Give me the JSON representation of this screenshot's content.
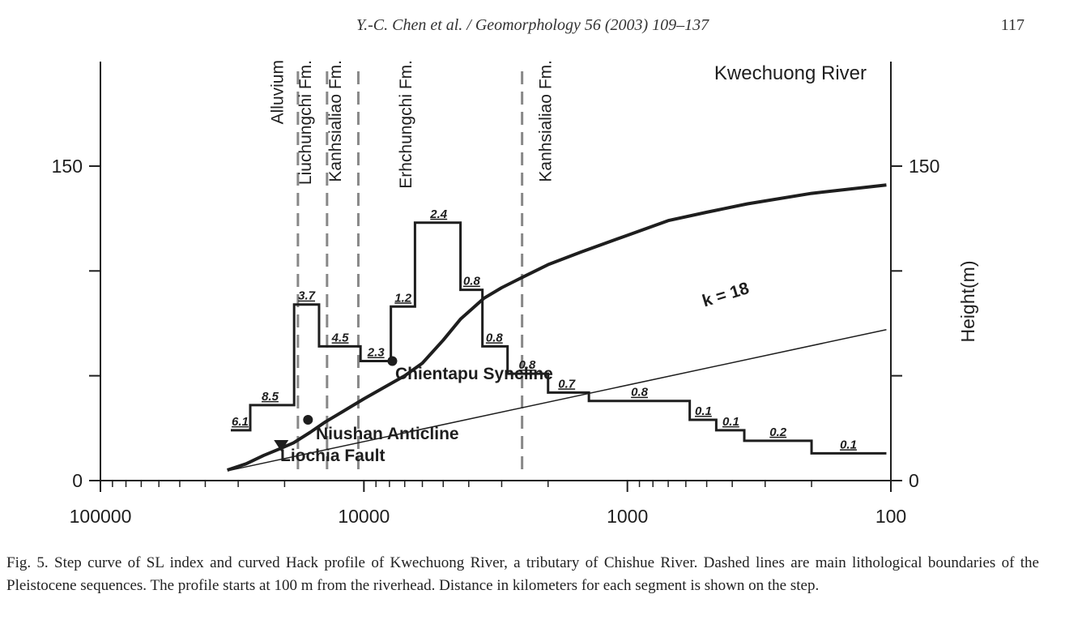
{
  "header": {
    "journal_ref": "Y.-C. Chen et al. / Geomorphology 56 (2003) 109–137",
    "page_number": "117"
  },
  "chart_data": {
    "type": "line",
    "title": "Kwechuong River",
    "xlabel": "",
    "ylabel": "Height(m)",
    "x_scale": "log",
    "x_reversed": true,
    "xlim": [
      100000,
      100
    ],
    "ylim": [
      0,
      200
    ],
    "x_ticks": [
      100000,
      10000,
      1000,
      100
    ],
    "x_tick_labels": [
      "100000",
      "10000",
      "1000",
      "100"
    ],
    "y_ticks": [
      0,
      150
    ],
    "y_tick_labels": [
      "0",
      "150"
    ],
    "y_minor_ticks": [
      0,
      50,
      100,
      150
    ],
    "y_tick_labels_right": [
      "0",
      "150"
    ],
    "dashed_boundaries": [
      17800,
      13800,
      10500,
      2510
    ],
    "formation_labels": [
      {
        "text": "Alluvium",
        "x": 20300
      },
      {
        "text": "Liuchungchi Fm.",
        "x": 15900
      },
      {
        "text": "Kanhsialiao Fm.",
        "x": 12200
      },
      {
        "text": "Erhchungchi Fm.",
        "x": 6600
      },
      {
        "text": "Kanhsialiao Fm.",
        "x": 1950
      }
    ],
    "sl_index_steps": {
      "name": "SL index",
      "x": [
        32000,
        27000,
        18400,
        14800,
        10300,
        7900,
        6400,
        4300,
        3550,
        2850,
        2000,
        1400,
        580,
        460,
        360,
        200,
        104
      ],
      "y": [
        24,
        36,
        84,
        64,
        57,
        83,
        123,
        91,
        64,
        51,
        42,
        38,
        29,
        24,
        19,
        13,
        13
      ],
      "labels": [
        {
          "text": "6.1",
          "x": 29500,
          "y": 24
        },
        {
          "text": "8.5",
          "x": 22700,
          "y": 36
        },
        {
          "text": "3.7",
          "x": 16500,
          "y": 84
        },
        {
          "text": "4.5",
          "x": 12300,
          "y": 64
        },
        {
          "text": "2.3",
          "x": 9000,
          "y": 57
        },
        {
          "text": "1.2",
          "x": 7100,
          "y": 83
        },
        {
          "text": "2.4",
          "x": 5200,
          "y": 123
        },
        {
          "text": "0.8",
          "x": 3900,
          "y": 91
        },
        {
          "text": "0.8",
          "x": 3200,
          "y": 64
        },
        {
          "text": "0.8",
          "x": 2400,
          "y": 51
        },
        {
          "text": "0.7",
          "x": 1700,
          "y": 42
        },
        {
          "text": "0.8",
          "x": 900,
          "y": 38
        },
        {
          "text": "0.1",
          "x": 515,
          "y": 29
        },
        {
          "text": "0.1",
          "x": 405,
          "y": 24
        },
        {
          "text": "0.2",
          "x": 268,
          "y": 19
        },
        {
          "text": "0.1",
          "x": 145,
          "y": 13
        }
      ]
    },
    "hack_profile": {
      "name": "Kwechuong River",
      "x": [
        33000,
        28000,
        24000,
        21000,
        18500,
        16000,
        14000,
        12000,
        10000,
        8500,
        7000,
        6000,
        5000,
        4300,
        3500,
        3000,
        2500,
        2000,
        1500,
        1000,
        700,
        500,
        350,
        200,
        104
      ],
      "y": [
        5,
        8,
        12,
        15,
        18,
        23,
        28,
        33,
        39,
        44,
        50,
        56,
        67,
        77,
        87,
        92,
        97,
        103,
        109,
        117,
        124,
        128,
        132,
        137,
        141
      ]
    },
    "k_line": {
      "label": "k = 18",
      "x": [
        32000,
        104
      ],
      "y": [
        5,
        72
      ]
    },
    "annotations": [
      {
        "text": "Chientapu Syncline",
        "x": 7800,
        "y": 38
      },
      {
        "text": "Niushan Anticline",
        "x": 16300,
        "y": 20
      },
      {
        "text": "Liochia Fault",
        "x": 20600,
        "y": 12
      }
    ],
    "colors": {
      "line": "#1e1e1e",
      "dashed": "#888888"
    }
  },
  "caption": "Fig. 5. Step curve of SL index and curved Hack profile of Kwechuong River, a tributary of Chishue River. Dashed lines are main lithological boundaries of the Pleistocene sequences. The profile starts at 100 m from the riverhead. Distance in kilometers for each segment is shown on the step."
}
